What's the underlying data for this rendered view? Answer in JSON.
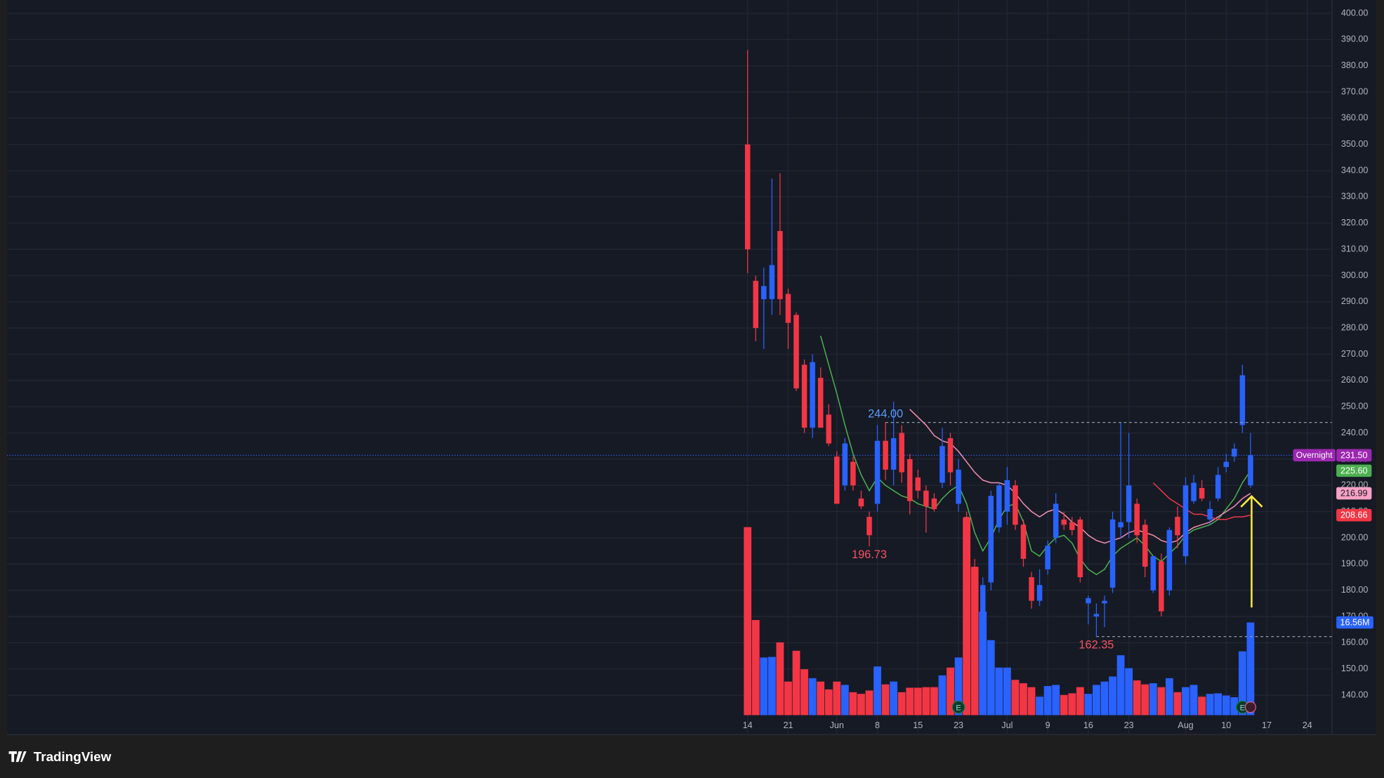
{
  "chart_data": {
    "type": "candlestick",
    "categories": [
      "14",
      null,
      null,
      null,
      null,
      "21",
      null,
      null,
      null,
      null,
      null,
      "Jun",
      null,
      null,
      null,
      null,
      "8",
      null,
      null,
      null,
      null,
      "15",
      null,
      null,
      null,
      null,
      "23",
      null,
      null,
      null,
      null,
      null,
      "Jul",
      null,
      null,
      null,
      null,
      "9",
      null,
      null,
      null,
      null,
      "16",
      null,
      null,
      null,
      null,
      "23",
      null,
      null,
      null,
      null,
      null,
      null,
      "Aug",
      null,
      null,
      null,
      null,
      "10",
      null,
      null,
      null,
      null,
      "17",
      null,
      null,
      null,
      null,
      "24"
    ],
    "open": [
      350,
      298,
      291,
      291,
      317,
      293,
      285,
      266,
      242,
      261,
      247,
      231,
      220,
      229,
      215,
      208,
      213,
      237,
      226,
      240,
      230,
      223,
      218,
      215,
      221,
      238,
      213,
      208,
      189,
      163,
      183,
      204,
      210,
      220,
      205,
      185,
      176,
      188,
      200,
      207,
      206,
      207,
      175,
      170,
      175,
      181,
      204,
      206,
      213,
      205,
      180,
      191,
      180,
      208,
      193,
      214,
      219,
      207,
      215,
      227,
      231,
      243,
      220,
      null,
      null,
      null,
      null,
      null,
      null,
      null
    ],
    "high": [
      386,
      300,
      303,
      337,
      339,
      295,
      286,
      268,
      270,
      265,
      251,
      233,
      238,
      231,
      218,
      210,
      243,
      244,
      252,
      243,
      232,
      226,
      220,
      217,
      242,
      240,
      230,
      210,
      192,
      185,
      218,
      221,
      227,
      222,
      207,
      187,
      188,
      199,
      217,
      210,
      208,
      208,
      178,
      175,
      178,
      210,
      244,
      240,
      215,
      207,
      193,
      194,
      204,
      212,
      223,
      224,
      222,
      214,
      227,
      232,
      236,
      266,
      240,
      null,
      null,
      null,
      null,
      null,
      null,
      null
    ],
    "low": [
      301,
      275,
      272,
      285,
      285,
      272,
      256,
      240,
      238,
      242,
      235,
      213,
      218,
      218,
      211,
      196.73,
      210,
      222,
      220,
      221,
      209,
      215,
      202,
      210,
      219,
      220,
      210,
      183,
      160,
      160,
      180,
      202,
      205,
      203,
      189,
      173,
      174,
      186,
      198,
      203,
      201,
      183,
      167,
      162.35,
      166,
      179,
      200,
      200,
      198,
      185,
      179,
      170,
      178,
      196,
      190,
      213,
      214,
      205,
      214,
      225,
      229,
      240,
      219,
      null,
      null,
      null,
      null,
      null,
      null,
      null
    ],
    "close": [
      310,
      280,
      296,
      304,
      291,
      282,
      257,
      242,
      267,
      242,
      236,
      213,
      236,
      220,
      212,
      201,
      237,
      226,
      238,
      225,
      214,
      218,
      212,
      211,
      235,
      225,
      226,
      183,
      163,
      182,
      216,
      220,
      222,
      205,
      192,
      176,
      182,
      197,
      213,
      205,
      203,
      185,
      177,
      171,
      176,
      207,
      206,
      220,
      201,
      189,
      193,
      172,
      203,
      201,
      220,
      221,
      215,
      211,
      224,
      229,
      234,
      262,
      231.5,
      null,
      null,
      null,
      null,
      null,
      null,
      null
    ],
    "volume": [
      33.6,
      17,
      10.3,
      10.4,
      13,
      6,
      11.5,
      8.2,
      6.6,
      6,
      4.6,
      6,
      5.4,
      4.1,
      3.8,
      4.4,
      8.7,
      5.5,
      6,
      4.1,
      4.9,
      4.9,
      5,
      5,
      7.1,
      8.5,
      10.3,
      35.3,
      26.5,
      18.5,
      13.4,
      8.5,
      8.5,
      6.3,
      5.7,
      5,
      3.3,
      5.2,
      5.4,
      3.6,
      3.9,
      5,
      3.8,
      5.4,
      6,
      6.9,
      10.7,
      8.4,
      6.2,
      5.5,
      5.7,
      5,
      6.6,
      4.1,
      5,
      5.4,
      3.3,
      3.8,
      3.9,
      3.5,
      3.2,
      11.4,
      16.56,
      null,
      null,
      null,
      null,
      null,
      null,
      null
    ],
    "up_color": "#2962ff",
    "down_color": "#f23645",
    "series": [
      {
        "color": "#4caf50",
        "values": [
          null,
          null,
          null,
          null,
          null,
          null,
          null,
          null,
          null,
          277,
          266,
          255,
          243,
          232,
          224,
          218,
          223,
          220,
          218,
          216,
          215,
          213,
          212,
          211,
          215,
          218,
          220,
          213,
          202,
          195,
          200,
          207,
          212,
          213,
          206,
          195,
          193,
          197,
          200,
          201,
          198,
          192,
          188,
          186,
          188,
          193,
          196,
          198,
          200,
          197,
          193,
          191,
          194,
          197,
          201,
          203,
          204,
          205,
          207,
          211,
          215,
          221,
          225.6,
          null,
          null,
          null,
          null,
          null,
          null,
          null
        ]
      },
      {
        "color": "#f48fb1",
        "values": [
          null,
          null,
          null,
          null,
          null,
          null,
          null,
          null,
          null,
          null,
          null,
          null,
          null,
          null,
          null,
          null,
          null,
          null,
          null,
          null,
          249,
          246,
          243,
          239,
          237,
          236,
          233,
          229,
          225,
          222,
          221,
          221,
          220,
          217,
          213,
          210,
          208,
          210,
          211,
          209,
          206,
          204,
          201,
          199,
          198,
          199,
          200,
          202,
          203,
          202,
          201,
          199,
          198,
          199,
          202,
          204,
          205,
          206,
          208,
          210,
          212,
          215,
          216.99,
          null,
          null,
          null,
          null,
          null,
          null,
          null
        ]
      },
      {
        "color": "#f23645",
        "values": [
          null,
          null,
          null,
          null,
          null,
          null,
          null,
          null,
          null,
          null,
          null,
          null,
          null,
          null,
          null,
          null,
          null,
          null,
          null,
          null,
          null,
          null,
          null,
          null,
          null,
          null,
          null,
          null,
          null,
          null,
          null,
          null,
          null,
          null,
          null,
          null,
          null,
          null,
          null,
          null,
          null,
          null,
          null,
          null,
          null,
          null,
          null,
          null,
          null,
          null,
          221,
          218,
          215,
          213,
          211,
          209,
          209,
          208,
          207,
          207,
          208,
          208,
          208.66,
          null,
          null,
          null,
          null,
          null,
          null,
          null
        ]
      }
    ],
    "ylim": [
      125,
      405
    ],
    "yticks": [
      {
        "value": 140,
        "label": "140.00"
      },
      {
        "value": 150,
        "label": "150.00"
      },
      {
        "value": 160,
        "label": "160.00"
      },
      {
        "value": 170,
        "label": "170.00"
      },
      {
        "value": 180,
        "label": "180.00"
      },
      {
        "value": 190,
        "label": "190.00"
      },
      {
        "value": 200,
        "label": "200.00"
      },
      {
        "value": 210,
        "label": "210.00"
      },
      {
        "value": 220,
        "label": "220.00"
      },
      {
        "value": 230,
        "label": "230.00"
      },
      {
        "value": 240,
        "label": "240.00"
      },
      {
        "value": 250,
        "label": "250.00"
      },
      {
        "value": 260,
        "label": "260.00"
      },
      {
        "value": 270,
        "label": "270.00"
      },
      {
        "value": 280,
        "label": "280.00"
      },
      {
        "value": 290,
        "label": "290.00"
      },
      {
        "value": 300,
        "label": "300.00"
      },
      {
        "value": 310,
        "label": "310.00"
      },
      {
        "value": 320,
        "label": "320.00"
      },
      {
        "value": 330,
        "label": "330.00"
      },
      {
        "value": 340,
        "label": "340.00"
      },
      {
        "value": 350,
        "label": "350.00"
      },
      {
        "value": 360,
        "label": "360.00"
      },
      {
        "value": 370,
        "label": "370.00"
      },
      {
        "value": 380,
        "label": "380.00"
      },
      {
        "value": 390,
        "label": "390.00"
      },
      {
        "value": 400,
        "label": "400.00"
      }
    ],
    "grid": true,
    "annotations": [
      {
        "kind": "high",
        "value": 244,
        "label": "244.00",
        "color": "#5b9cf6"
      },
      {
        "kind": "low",
        "value": 196.73,
        "label": "196.73",
        "color": "#f7525f"
      },
      {
        "kind": "low",
        "value": 162.35,
        "label": "162.35",
        "color": "#f7525f"
      }
    ],
    "price_badges": [
      {
        "tag": "Overnight",
        "value": 231.5,
        "label": "231.50",
        "color": "#9c27b0"
      },
      {
        "value": 225.6,
        "label": "225.60",
        "color": "#4caf50"
      },
      {
        "value": 216.99,
        "label": "216.99",
        "color": "#f7a1c4"
      },
      {
        "value": 208.66,
        "label": "208.66",
        "color": "#f23645"
      }
    ],
    "volume_badge": {
      "value": 16.56,
      "label": "16.56M",
      "color": "#2962ff"
    },
    "earnings_marker": "E"
  },
  "branding": "TradingView"
}
